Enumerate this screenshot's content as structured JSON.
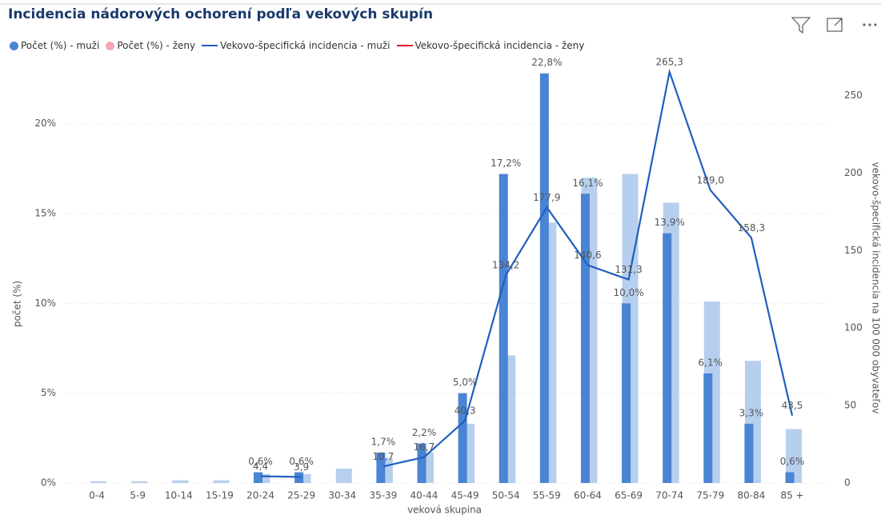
{
  "chart_data": {
    "type": "combo",
    "title": "Incidencia nádorových ochorení podľa vekových skupín",
    "x_label": "veková skupina",
    "y_label": "počet (%)",
    "y2_label": "vekovo-špecifická incidencia na 100 000 obyvateľov",
    "categories": [
      "0-4",
      "5-9",
      "10-14",
      "15-19",
      "20-24",
      "25-29",
      "30-34",
      "35-39",
      "40-44",
      "45-49",
      "50-54",
      "55-59",
      "60-64",
      "65-69",
      "70-74",
      "75-79",
      "80-84",
      "85 +"
    ],
    "series": [
      {
        "name": "Počet (%) - muži",
        "type": "bar",
        "color": "#4a84d4",
        "legend_color": "#4a84d4",
        "values": [
          null,
          null,
          null,
          null,
          0.6,
          0.6,
          null,
          1.7,
          2.2,
          5.0,
          17.2,
          22.8,
          16.1,
          10.0,
          13.9,
          6.1,
          3.3,
          0.6
        ],
        "value_labels": [
          null,
          null,
          null,
          null,
          "0,6%",
          "0,6%",
          null,
          "1,7%",
          "2,2%",
          "5,0%",
          "17,2%",
          "22,8%",
          "16,1%",
          "10,0%",
          "13,9%",
          "6,1%",
          "3,3%",
          "0,6%"
        ]
      },
      {
        "name": "Počet (%) - ženy",
        "type": "bar",
        "color": "#b7cfee",
        "legend_color": "#f4a7b4",
        "values": [
          0.1,
          0.1,
          0.15,
          0.15,
          0.5,
          0.5,
          0.8,
          1.4,
          1.7,
          3.3,
          7.1,
          14.5,
          17.0,
          17.2,
          15.6,
          10.1,
          6.8,
          3.0
        ]
      },
      {
        "name": "Vekovo-špecifická incidencia - muži",
        "type": "line",
        "axis": "y2",
        "color": "#1f5fbf",
        "values": [
          null,
          null,
          null,
          null,
          4.4,
          3.9,
          null,
          10.7,
          16.7,
          40.3,
          134.2,
          177.9,
          140.6,
          131.3,
          265.3,
          189.0,
          158.3,
          43.5
        ],
        "value_labels": [
          null,
          null,
          null,
          null,
          "4,4",
          "3,9",
          null,
          "10,7",
          "16,7",
          "40,3",
          "134,2",
          "177,9",
          "140,6",
          "131,3",
          "265,3",
          "189,0",
          "158,3",
          "43,5"
        ]
      },
      {
        "name": "Vekovo-špecifická incidencia - ženy",
        "type": "line",
        "axis": "y2",
        "color": "#e8112d",
        "values": [
          null,
          null,
          null,
          null,
          null,
          null,
          null,
          null,
          null,
          null,
          null,
          null,
          null,
          null,
          null,
          null,
          null,
          null
        ]
      }
    ],
    "ylim": [
      0,
      23.5
    ],
    "yticks": [
      {
        "value": 0,
        "label": "0%"
      },
      {
        "value": 5,
        "label": "5%"
      },
      {
        "value": 10,
        "label": "10%"
      },
      {
        "value": 15,
        "label": "15%"
      },
      {
        "value": 20,
        "label": "20%"
      }
    ],
    "y2lim": [
      0,
      272.5
    ],
    "y2ticks": [
      0,
      50,
      100,
      150,
      200,
      250
    ],
    "grid": true
  }
}
